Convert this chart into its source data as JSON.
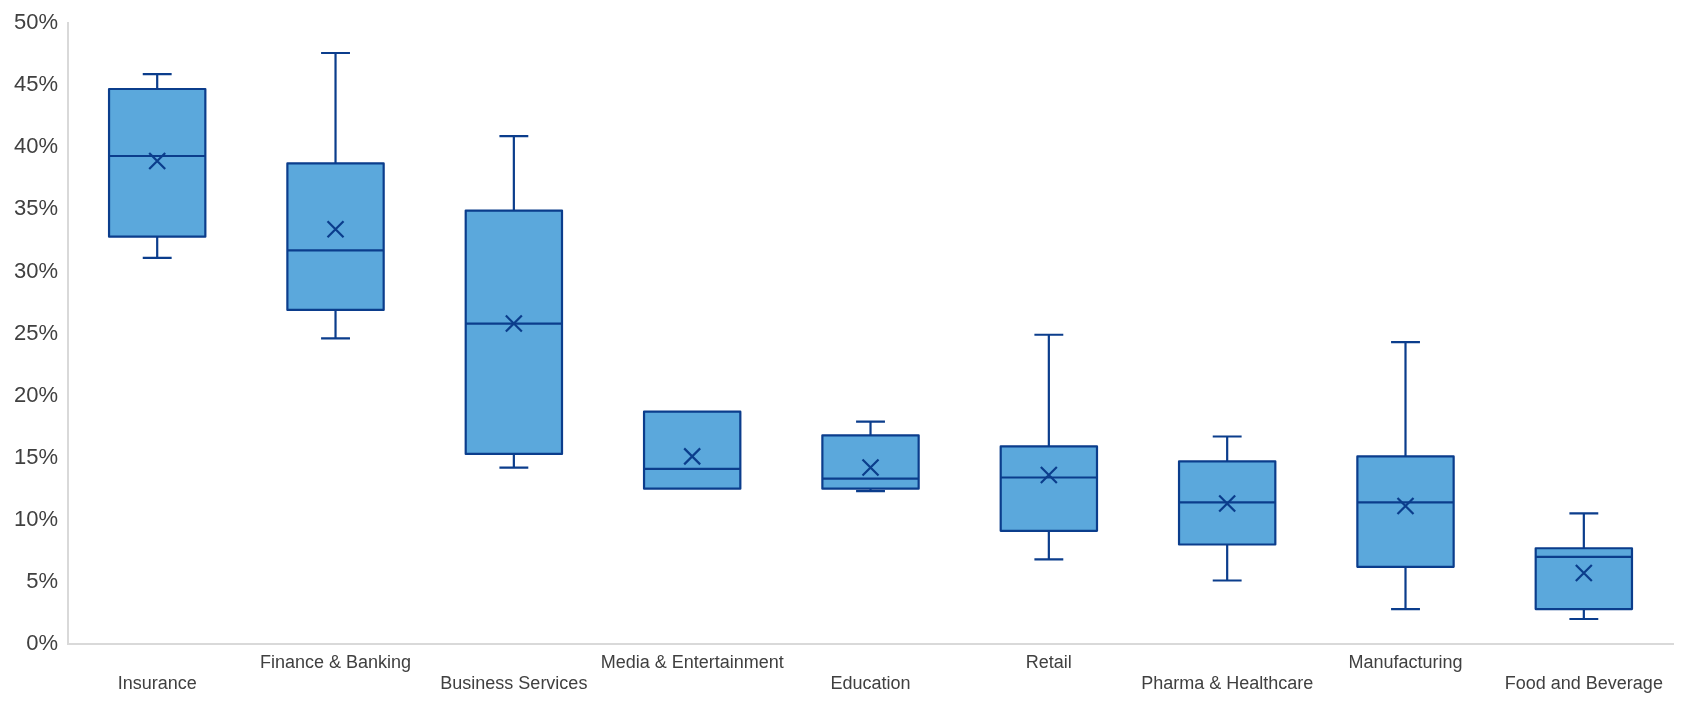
{
  "chart_data": {
    "type": "box",
    "categories": [
      "Insurance",
      "Finance & Banking",
      "Business Services",
      "Media & Entertainment",
      "Education",
      "Retail",
      "Pharma & Healthcare",
      "Manufacturing",
      "Food and Beverage"
    ],
    "series": [
      {
        "color": "#5ba8dc",
        "boxes": [
          {
            "low": 31.1,
            "q1": 32.8,
            "median": 39.3,
            "q3": 44.7,
            "high": 45.9,
            "mean": 38.9
          },
          {
            "low": 24.6,
            "q1": 26.9,
            "median": 31.7,
            "q3": 38.7,
            "high": 47.6,
            "mean": 33.4
          },
          {
            "low": 14.2,
            "q1": 15.3,
            "median": 25.8,
            "q3": 34.9,
            "high": 40.9,
            "mean": 25.8
          },
          {
            "low": 12.5,
            "q1": 12.5,
            "median": 14.1,
            "q3": 18.7,
            "high": 18.7,
            "mean": 15.1
          },
          {
            "low": 12.3,
            "q1": 12.5,
            "median": 13.3,
            "q3": 16.8,
            "high": 17.9,
            "mean": 14.2
          },
          {
            "low": 6.8,
            "q1": 9.1,
            "median": 13.4,
            "q3": 15.9,
            "high": 24.9,
            "mean": 13.6
          },
          {
            "low": 5.1,
            "q1": 8.0,
            "median": 11.4,
            "q3": 14.7,
            "high": 16.7,
            "mean": 11.3
          },
          {
            "low": 2.8,
            "q1": 6.2,
            "median": 11.4,
            "q3": 15.1,
            "high": 24.3,
            "mean": 11.1
          },
          {
            "low": 2.0,
            "q1": 2.8,
            "median": 7.0,
            "q3": 7.7,
            "high": 10.5,
            "mean": 5.7
          }
        ]
      }
    ],
    "ylim": [
      0,
      50
    ],
    "yticks": [
      {
        "value": 0,
        "label": "0%"
      },
      {
        "value": 5,
        "label": "5%"
      },
      {
        "value": 10,
        "label": "10%"
      },
      {
        "value": 15,
        "label": "15%"
      },
      {
        "value": 20,
        "label": "20%"
      },
      {
        "value": 25,
        "label": "25%"
      },
      {
        "value": 30,
        "label": "30%"
      },
      {
        "value": 35,
        "label": "35%"
      },
      {
        "value": 40,
        "label": "40%"
      },
      {
        "value": 45,
        "label": "45%"
      },
      {
        "value": 50,
        "label": "50%"
      }
    ],
    "grid": false,
    "legend": false,
    "marker": "cross"
  }
}
